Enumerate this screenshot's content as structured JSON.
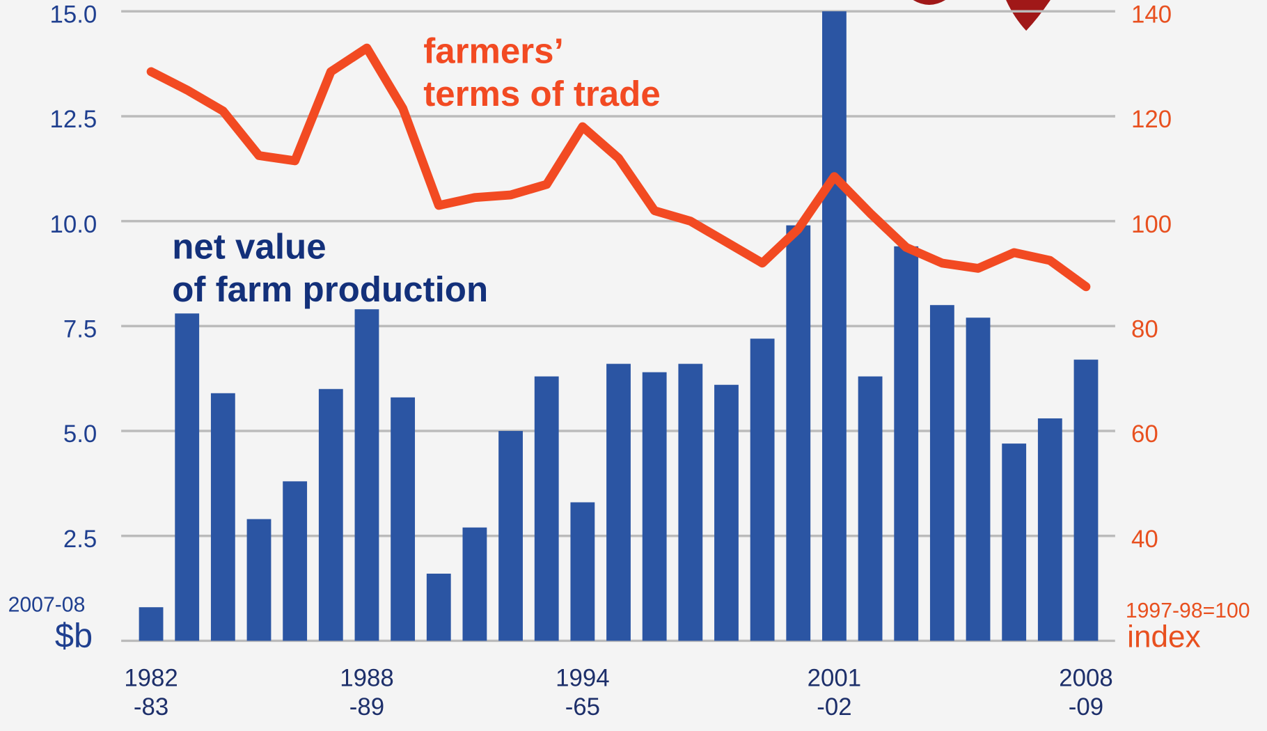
{
  "chart_data": {
    "type": "bar_line",
    "annotations": {
      "line_label": "farmers’\nterms of trade",
      "bar_label": "net value\nof farm production"
    },
    "ylabel": {
      "unit_note": "2007-08",
      "unit": "$b"
    },
    "y2label": {
      "unit_note": "1997-98=100",
      "unit": "index"
    },
    "categories": [
      "1982\n-83",
      null,
      null,
      null,
      null,
      null,
      "1988\n-89",
      null,
      null,
      null,
      null,
      null,
      "1994\n-65",
      null,
      null,
      null,
      null,
      null,
      null,
      "2001\n-02",
      null,
      null,
      null,
      null,
      null,
      null,
      "2008\n-09"
    ],
    "series": [
      {
        "name": "net value of farm production",
        "type": "bar",
        "color": "#2b55a3",
        "values": [
          0.8,
          7.8,
          5.9,
          2.9,
          3.8,
          6.0,
          7.9,
          5.8,
          1.6,
          2.7,
          5.0,
          6.3,
          3.3,
          6.6,
          6.4,
          6.6,
          6.1,
          7.2,
          9.9,
          15.0,
          6.3,
          9.4,
          8.0,
          7.7,
          4.7,
          5.3,
          6.7
        ]
      },
      {
        "name": "farmers’ terms of trade",
        "type": "line",
        "axis": "y2",
        "color": "#f24a22",
        "values": [
          128.5,
          125,
          121,
          112.5,
          111.5,
          128.5,
          133,
          121.5,
          103,
          104.5,
          105,
          107,
          118,
          112,
          102,
          100,
          96,
          92,
          98.5,
          108.5,
          101.5,
          95,
          92,
          91,
          94,
          92.5,
          87.5
        ]
      }
    ],
    "ylim": [
      0,
      15
    ],
    "yticks": [
      {
        "value": 15,
        "label": "15.0"
      },
      12.5,
      {
        "value": 10,
        "label": "10.0"
      },
      7.5,
      {
        "value": 5,
        "label": "5.0"
      },
      2.5
    ],
    "y2lim": [
      20,
      140
    ],
    "y2ticks": [
      140,
      120,
      100,
      80,
      60,
      40
    ],
    "grid": true
  }
}
